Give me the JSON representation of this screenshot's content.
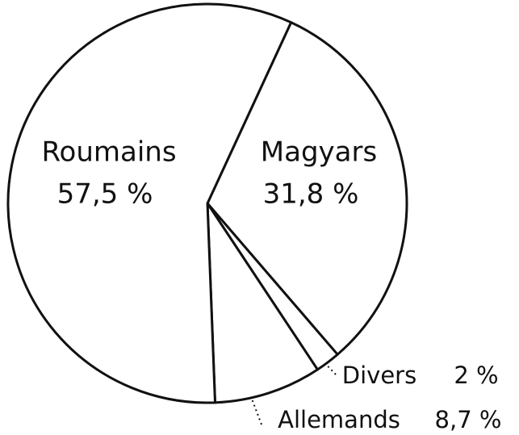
{
  "chart_data": {
    "type": "pie",
    "categories": [
      "Magyars",
      "Divers",
      "Allemands",
      "Roumains"
    ],
    "values": [
      31.8,
      2,
      8.7,
      57.5
    ],
    "value_labels": [
      "31,8 %",
      "2 %",
      "8,7 %",
      "57,5 %"
    ],
    "color": "#ffffff"
  }
}
